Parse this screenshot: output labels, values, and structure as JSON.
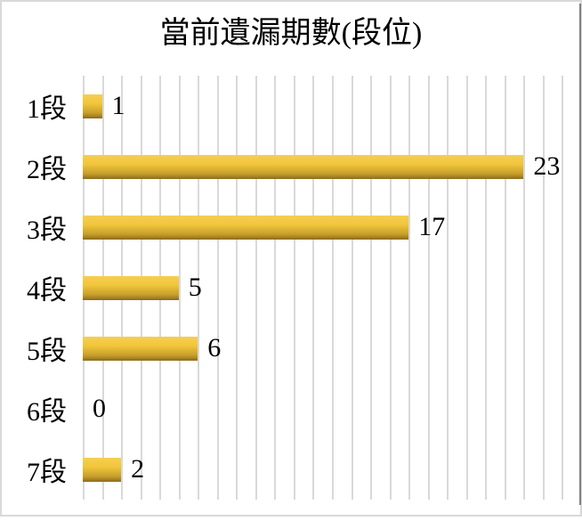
{
  "chart_data": {
    "type": "bar",
    "orientation": "horizontal",
    "title": "當前遺漏期數(段位)",
    "categories": [
      "1段",
      "2段",
      "3段",
      "4段",
      "5段",
      "6段",
      "7段"
    ],
    "values": [
      1,
      23,
      17,
      5,
      6,
      0,
      2
    ],
    "xlabel": "",
    "ylabel": "",
    "xlim": [
      0,
      26
    ],
    "gridline_step": 1,
    "grid": "vertical-gridlines-only",
    "legend_position": "none",
    "data_labels_shown": true,
    "colors": {
      "bar_gradient": [
        "#f6ce52",
        "#f1c63b",
        "#c79e2b",
        "#8a6c1e"
      ],
      "bar_gradient_stops_pct": [
        0,
        38,
        78,
        100
      ],
      "gridline": "#d9d9d9",
      "chart_border": "#d9d9d9",
      "right_edge_line": "#808080",
      "text": "#000000",
      "background": "#ffffff"
    }
  }
}
